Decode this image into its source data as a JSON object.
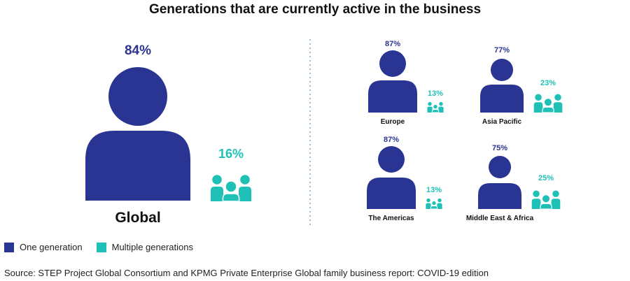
{
  "colors": {
    "one": "#2a3593",
    "multiple": "#1fc1b7",
    "divider": "#7ea8c8"
  },
  "title": "Generations that are currently active in the business",
  "legend": {
    "one": "One generation",
    "multiple": "Multiple generations"
  },
  "source": "Source: STEP Project Global Consortium and KPMG Private Enterprise Global family business report: COVID-19 edition",
  "chart_data": {
    "type": "pictogram",
    "title": "Generations that are currently active in the business",
    "unit": "%",
    "series": [
      {
        "name": "One generation",
        "key": "one"
      },
      {
        "name": "Multiple generations",
        "key": "multiple"
      }
    ],
    "regions": [
      {
        "name": "Global",
        "one": 84,
        "multiple": 16,
        "one_label": "84%",
        "multiple_label": "16%"
      },
      {
        "name": "Europe",
        "one": 87,
        "multiple": 13,
        "one_label": "87%",
        "multiple_label": "13%"
      },
      {
        "name": "Asia Pacific",
        "one": 77,
        "multiple": 23,
        "one_label": "77%",
        "multiple_label": "23%"
      },
      {
        "name": "The Americas",
        "one": 87,
        "multiple": 13,
        "one_label": "87%",
        "multiple_label": "13%"
      },
      {
        "name": "Middle East & Africa",
        "one": 75,
        "multiple": 25,
        "one_label": "75%",
        "multiple_label": "25%"
      }
    ]
  }
}
